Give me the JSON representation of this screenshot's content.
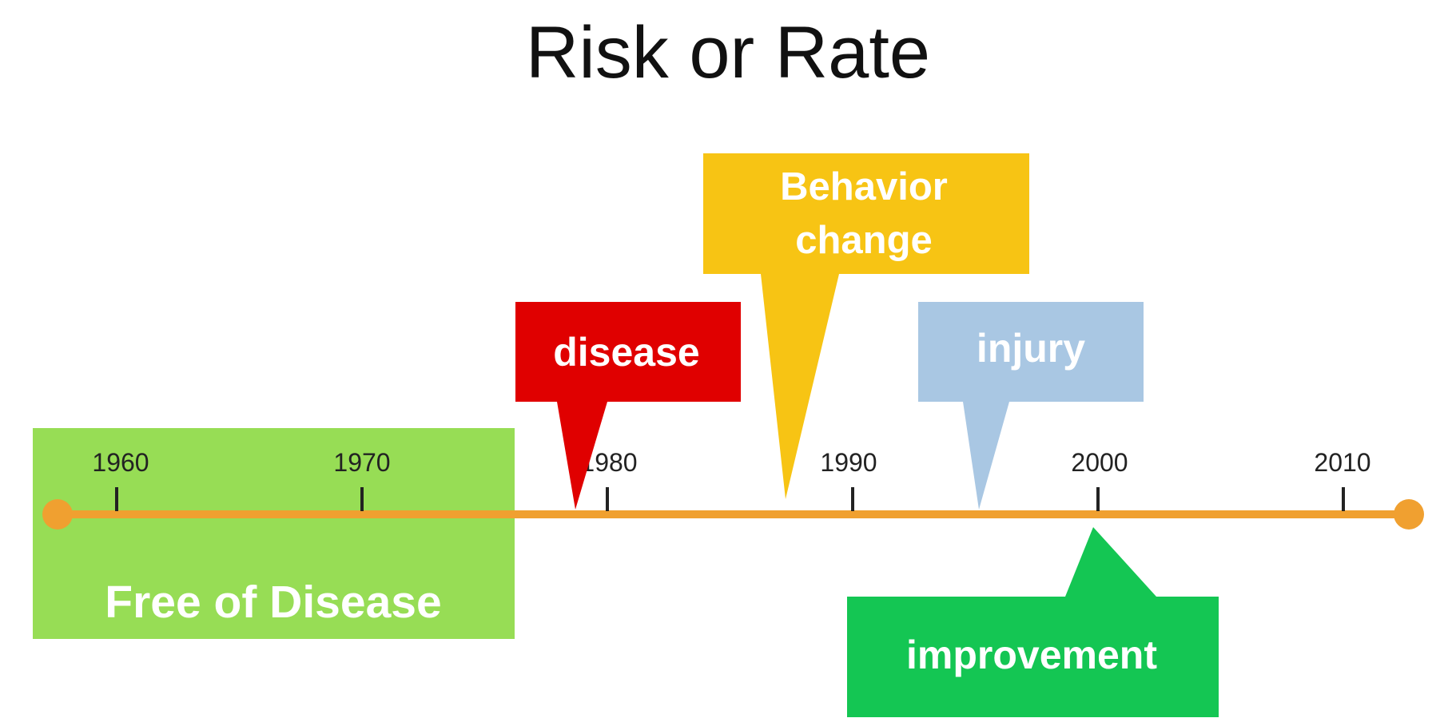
{
  "title": "Risk or Rate",
  "timeline": {
    "years": [
      "1960",
      "1970",
      "1980",
      "1990",
      "2000",
      "2010"
    ],
    "line_color": "#F0A030"
  },
  "free_region": {
    "label": "Free of Disease",
    "color": "#97DD55"
  },
  "callouts": {
    "disease": {
      "label": "disease",
      "color": "#E00000"
    },
    "behavior": {
      "line1": "Behavior",
      "line2": "change",
      "color": "#F7C414"
    },
    "injury": {
      "label": "injury",
      "color": "#A9C7E3"
    },
    "improvement": {
      "label": "improvement",
      "color": "#14C653"
    }
  }
}
